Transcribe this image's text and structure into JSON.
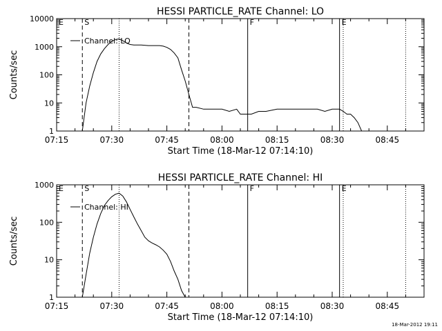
{
  "footer": {
    "timestamp": "18-Mar-2012 19:11"
  },
  "chart_data": [
    {
      "type": "line",
      "title": "HESSI PARTICLE_RATE Channel: LO",
      "xlabel": "Start Time (18-Mar-12 07:14:10)",
      "ylabel": "Counts/sec",
      "y_scale": "log",
      "xlim": [
        "07:15",
        "08:55"
      ],
      "ylim": [
        1,
        10000
      ],
      "x_tick_labels": [
        "07:15",
        "07:30",
        "07:45",
        "08:00",
        "08:15",
        "08:30",
        "08:45"
      ],
      "y_tick_labels": [
        "1",
        "10",
        "100",
        "1000",
        "10000"
      ],
      "y_tick_values": [
        1,
        10,
        100,
        1000,
        10000
      ],
      "legend": {
        "placement": "top-left",
        "entries": [
          "Channel: LO"
        ]
      },
      "markers": [
        {
          "time": "07:15",
          "style": "solid",
          "label": "E"
        },
        {
          "time": "07:22",
          "style": "dashed",
          "label": "S"
        },
        {
          "time": "07:32",
          "style": "dotted",
          "label": ""
        },
        {
          "time": "07:51",
          "style": "dashed",
          "label": ""
        },
        {
          "time": "08:07",
          "style": "solid",
          "label": "F"
        },
        {
          "time": "08:32",
          "style": "solid",
          "label": "E"
        },
        {
          "time": "08:33",
          "style": "dotted",
          "label": ""
        },
        {
          "time": "08:50",
          "style": "dotted",
          "label": ""
        }
      ],
      "series": [
        {
          "x": [
            "07:15",
            "07:22",
            "07:23",
            "07:24",
            "07:25",
            "07:26",
            "07:27",
            "07:28",
            "07:29",
            "07:30",
            "07:31",
            "07:32",
            "07:33",
            "07:34",
            "07:35",
            "07:36",
            "07:38",
            "07:40",
            "07:42",
            "07:43",
            "07:44",
            "07:45",
            "07:46",
            "07:47",
            "07:48",
            "07:49",
            "07:50",
            "07:51",
            "07:52",
            "07:53",
            "07:55",
            "07:57",
            "08:00",
            "08:02",
            "08:04",
            "08:05",
            "08:06",
            "08:08",
            "08:10",
            "08:12",
            "08:15",
            "08:18",
            "08:20",
            "08:22",
            "08:24",
            "08:26",
            "08:28",
            "08:30",
            "08:32",
            "08:33",
            "08:34",
            "08:35",
            "08:36",
            "08:37",
            "08:38",
            "08:39",
            "08:40"
          ],
          "y": [
            1,
            1,
            10,
            40,
            120,
            300,
            550,
            850,
            1200,
            1550,
            1800,
            1900,
            1650,
            1350,
            1200,
            1150,
            1150,
            1100,
            1100,
            1100,
            1050,
            950,
            800,
            600,
            400,
            150,
            60,
            20,
            7,
            7,
            6,
            6,
            6,
            5,
            6,
            4,
            4,
            4,
            5,
            5,
            6,
            6,
            6,
            6,
            6,
            6,
            5,
            6,
            6,
            5,
            4,
            4,
            3,
            2,
            1,
            1,
            1
          ]
        }
      ]
    },
    {
      "type": "line",
      "title": "HESSI PARTICLE_RATE Channel: HI",
      "xlabel": "Start Time (18-Mar-12 07:14:10)",
      "ylabel": "Counts/sec",
      "y_scale": "log",
      "xlim": [
        "07:15",
        "08:55"
      ],
      "ylim": [
        1,
        1000
      ],
      "x_tick_labels": [
        "07:15",
        "07:30",
        "07:45",
        "08:00",
        "08:15",
        "08:30",
        "08:45"
      ],
      "y_tick_labels": [
        "1",
        "10",
        "100",
        "1000"
      ],
      "y_tick_values": [
        1,
        10,
        100,
        1000
      ],
      "legend": {
        "placement": "top-left",
        "entries": [
          "Channel: HI"
        ]
      },
      "markers": [
        {
          "time": "07:15",
          "style": "solid",
          "label": "E"
        },
        {
          "time": "07:22",
          "style": "dashed",
          "label": "S"
        },
        {
          "time": "07:32",
          "style": "dotted",
          "label": ""
        },
        {
          "time": "07:51",
          "style": "dashed",
          "label": ""
        },
        {
          "time": "08:07",
          "style": "solid",
          "label": "F"
        },
        {
          "time": "08:32",
          "style": "solid",
          "label": "E"
        },
        {
          "time": "08:33",
          "style": "dotted",
          "label": ""
        },
        {
          "time": "08:50",
          "style": "dotted",
          "label": ""
        }
      ],
      "series": [
        {
          "x": [
            "07:22",
            "07:23",
            "07:24",
            "07:25",
            "07:26",
            "07:27",
            "07:28",
            "07:29",
            "07:30",
            "07:31",
            "07:32",
            "07:33",
            "07:34",
            "07:35",
            "07:36",
            "07:37",
            "07:38",
            "07:39",
            "07:40",
            "07:41",
            "07:42",
            "07:43",
            "07:44",
            "07:45",
            "07:46",
            "07:47",
            "07:48",
            "07:49",
            "07:50"
          ],
          "y": [
            1,
            4,
            15,
            40,
            90,
            170,
            280,
            380,
            480,
            560,
            600,
            500,
            350,
            220,
            140,
            90,
            60,
            40,
            32,
            28,
            25,
            22,
            18,
            14,
            9,
            5,
            3,
            1.5,
            1
          ]
        }
      ]
    }
  ]
}
